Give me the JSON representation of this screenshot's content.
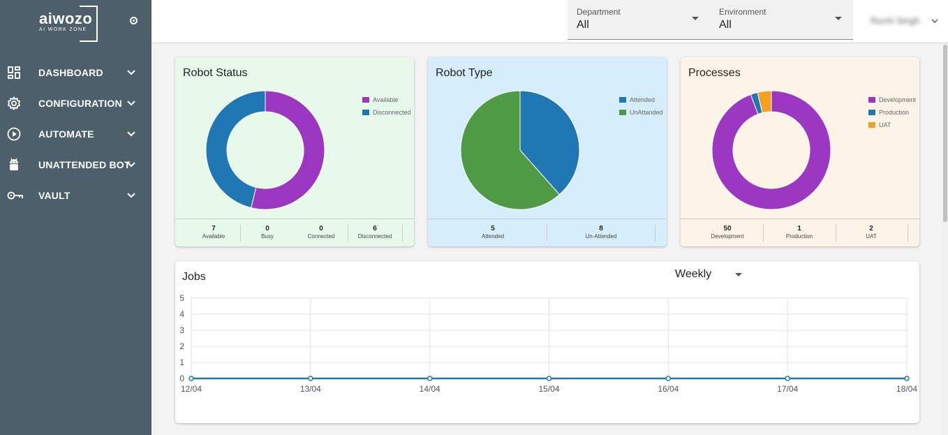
{
  "brand": {
    "name": "aiwozo",
    "tagline": "AI WORK ZONE"
  },
  "nav": [
    {
      "label": "DASHBOARD",
      "icon": "dashboard-icon"
    },
    {
      "label": "CONFIGURATION",
      "icon": "gear-icon"
    },
    {
      "label": "AUTOMATE",
      "icon": "play-circle-icon"
    },
    {
      "label": "UNATTENDED BOT",
      "icon": "android-icon"
    },
    {
      "label": "VAULT",
      "icon": "key-icon"
    }
  ],
  "filters": {
    "department": {
      "label": "Department",
      "value": "All"
    },
    "environment": {
      "label": "Environment",
      "value": "All"
    }
  },
  "user": {
    "name": "Ruchi Singh"
  },
  "robot_status": {
    "title": "Robot Status",
    "legend": [
      "Available",
      "Disconnected"
    ],
    "colors": [
      "#9b37c0",
      "#1f77b4"
    ],
    "stats": [
      {
        "value": "7",
        "label": "Available"
      },
      {
        "value": "0",
        "label": "Busy"
      },
      {
        "value": "0",
        "label": "Connected"
      },
      {
        "value": "6",
        "label": "Disconnected"
      }
    ]
  },
  "robot_type": {
    "title": "Robot Type",
    "legend": [
      "Attended",
      "UnAttanded"
    ],
    "colors": [
      "#1f77b4",
      "#4f9a45"
    ],
    "stats": [
      {
        "value": "5",
        "label": "Attended"
      },
      {
        "value": "8",
        "label": "Un-Attended"
      }
    ]
  },
  "processes": {
    "title": "Processes",
    "legend": [
      "Development",
      "Production",
      "UAT"
    ],
    "colors": [
      "#9b37c0",
      "#1f77b4",
      "#f5a020"
    ],
    "stats": [
      {
        "value": "50",
        "label": "Development"
      },
      {
        "value": "1",
        "label": "Production"
      },
      {
        "value": "2",
        "label": "UAT"
      }
    ]
  },
  "jobs": {
    "title": "Jobs",
    "period": "Weekly"
  },
  "chart_data": [
    {
      "type": "pie",
      "donut": true,
      "categories": [
        "Available",
        "Disconnected"
      ],
      "values": [
        7,
        6
      ]
    },
    {
      "type": "pie",
      "donut": false,
      "categories": [
        "Attended",
        "UnAttanded"
      ],
      "values": [
        5,
        8
      ]
    },
    {
      "type": "pie",
      "donut": true,
      "categories": [
        "Development",
        "Production",
        "UAT"
      ],
      "values": [
        50,
        1,
        2
      ]
    },
    {
      "type": "line",
      "categories": [
        "12/04",
        "13/04",
        "14/04",
        "15/04",
        "16/04",
        "17/04",
        "18/04"
      ],
      "series": [
        {
          "values": [
            0,
            0,
            0,
            0,
            0,
            0,
            0
          ]
        }
      ],
      "ylim": [
        0,
        5
      ],
      "yticks": [
        "0",
        "1",
        "2",
        "3",
        "4",
        "5"
      ],
      "grid": true,
      "color": "#1f77b4"
    }
  ]
}
